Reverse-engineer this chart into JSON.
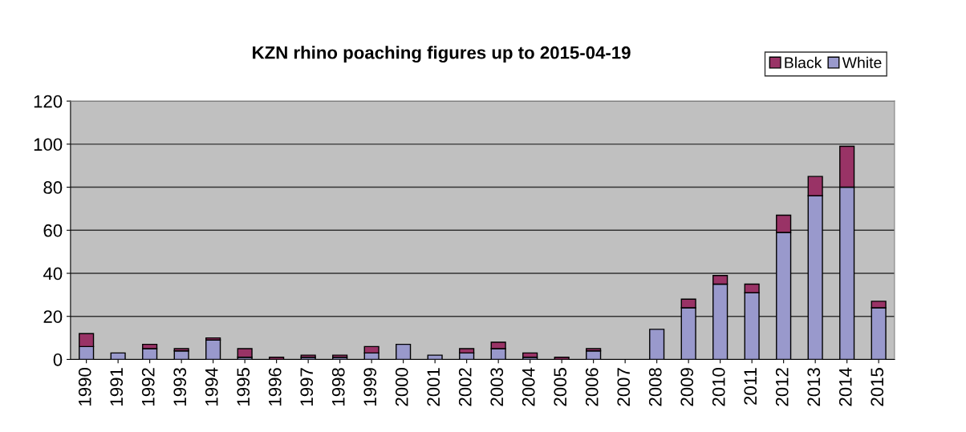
{
  "chart_data": {
    "type": "bar",
    "title": "KZN rhino poaching figures up to 2015-04-19",
    "stacked": true,
    "categories": [
      "1990",
      "1991",
      "1992",
      "1993",
      "1994",
      "1995",
      "1996",
      "1997",
      "1998",
      "1999",
      "2000",
      "2001",
      "2002",
      "2003",
      "2004",
      "2005",
      "2006",
      "2007",
      "2008",
      "2009",
      "2010",
      "2011",
      "2012",
      "2013",
      "2014",
      "2015"
    ],
    "series": [
      {
        "name": "White",
        "color": "#9999cc",
        "values": [
          6,
          3,
          5,
          4,
          9,
          1,
          0,
          1,
          1,
          3,
          7,
          2,
          3,
          5,
          1,
          0,
          4,
          0,
          14,
          24,
          35,
          31,
          59,
          76,
          80,
          24
        ]
      },
      {
        "name": "Black",
        "color": "#993366",
        "values": [
          6,
          0,
          2,
          1,
          1,
          4,
          1,
          1,
          1,
          3,
          0,
          0,
          2,
          3,
          2,
          1,
          1,
          0,
          0,
          4,
          4,
          4,
          8,
          9,
          19,
          3
        ]
      }
    ],
    "ylim": [
      0,
      120
    ],
    "yticks": [
      0,
      20,
      40,
      60,
      80,
      100,
      120
    ],
    "grid": "y",
    "legend": "top right"
  }
}
